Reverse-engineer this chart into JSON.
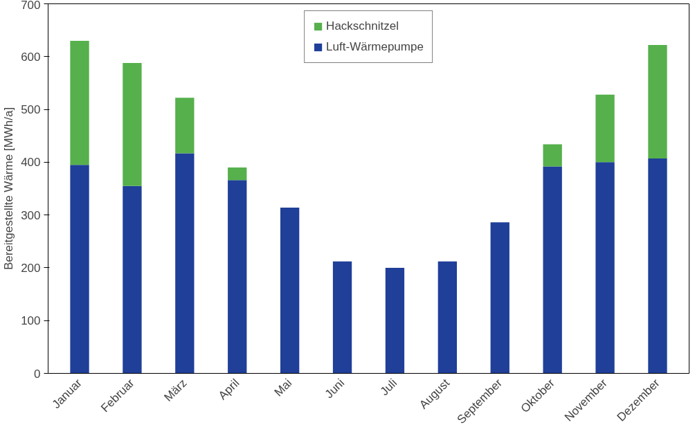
{
  "chart_data": {
    "type": "bar",
    "stacked": true,
    "ylabel": "Bereitgestellte Wärme [MWh/a]",
    "categories": [
      "Januar",
      "Februar",
      "März",
      "April",
      "Mai",
      "Juni",
      "Juli",
      "August",
      "September",
      "Oktober",
      "November",
      "Dezember"
    ],
    "series": [
      {
        "name": "Luft-Wärmepumpe",
        "color": "#1f3f98",
        "values": [
          395,
          355,
          417,
          366,
          314,
          212,
          200,
          212,
          286,
          392,
          400,
          407
        ]
      },
      {
        "name": "Hackschnitzel",
        "color": "#56b04c",
        "values": [
          235,
          233,
          105,
          24,
          0,
          0,
          0,
          0,
          0,
          42,
          128,
          215
        ]
      }
    ],
    "ylim": [
      0,
      700
    ],
    "yticks": [
      0,
      100,
      200,
      300,
      400,
      500,
      600,
      700
    ],
    "grid": false,
    "legend": "top"
  }
}
